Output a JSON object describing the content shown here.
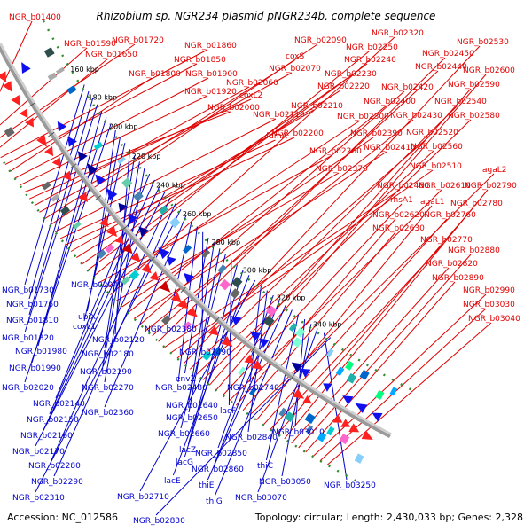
{
  "title": "Rhizobium sp. NGR234 plasmid pNGR234b, complete sequence",
  "footer": {
    "accession": "Accession: NC_012586",
    "topology": "Topology: circular; Length: 2,430,033 bp; Genes: 2,328"
  },
  "colors": {
    "top_labels": "#e00000",
    "bottom_labels": "#0000cc",
    "backbone": "#999999",
    "dots": "#2e8b2e"
  },
  "ticks": [
    "160 kbp",
    "180 kbp",
    "200 kbp",
    "220 kbp",
    "240 kbp",
    "260 kbp",
    "280 kbp",
    "300 kbp",
    "320 kbp",
    "340 kbp"
  ],
  "top_labels": [
    "NGR_b01400",
    "NGR_b01590",
    "NGR_b01720",
    "NGR_b01650",
    "NGR_b01860",
    "NGR_b01850",
    "NGR_b01800",
    "NGR_b01900",
    "NGR_b01920",
    "NGR_b02000",
    "coxL2",
    "NGR_b02060",
    "NGR_b02070",
    "coxS",
    "NGR_b02090",
    "NGR_b02110",
    "fumA",
    "NGR_b02200",
    "NGR_b02210",
    "NGR_b02220",
    "NGR_b02230",
    "NGR_b02240",
    "NGR_b02250",
    "NGR_b02260",
    "NGR_b02300",
    "NGR_b02320",
    "NGR_b02370",
    "NGR_b02390",
    "NGR_b02400",
    "NGR_b02410",
    "NGR_b02420",
    "NGR_b02430",
    "NGR_b02440",
    "NGR_b02450",
    "NGR_b02460",
    "NGR_b02510",
    "NGR_b02520",
    "NGR_b02530",
    "NGR_b02540",
    "NGR_b02560",
    "NGR_b02580",
    "NGR_b02590",
    "NGR_b02600",
    "rhsA1",
    "NGR_b02610",
    "NGR_b02620",
    "NGR_b02630",
    "agaL2",
    "agaL1",
    "NGR_b02760",
    "NGR_b02770",
    "NGR_b02780",
    "NGR_b02790",
    "NGR_b02820",
    "NGR_b02880",
    "NGR_b02890",
    "NGR_b02990",
    "NGR_b03030",
    "NGR_b03040"
  ],
  "bottom_labels": [
    "NGR_b01730",
    "NGR_b01760",
    "NGR_b01810",
    "NGR_b01820",
    "NGR_b01980",
    "NGR_b01990",
    "NGR_b02020",
    "NGR_b02040",
    "ubiX",
    "coxL1",
    "NGR_b02120",
    "NGR_b02180",
    "NGR_b02190",
    "NGR_b02270",
    "NGR_b02140",
    "NGR_b02150",
    "NGR_b02160",
    "NGR_b02170",
    "NGR_b02280",
    "NGR_b02290",
    "NGR_b02310",
    "NGR_b02360",
    "NGR_b02380",
    "NGR_b02480",
    "NGR_b02490",
    "envZ",
    "NGR_b02640",
    "NGR_b02650",
    "NGR_b02660",
    "lacF",
    "lacZ",
    "lacG",
    "lacE",
    "NGR_b02710",
    "NGR_b02740",
    "NGR_b02840",
    "NGR_b02850",
    "NGR_b02860",
    "thiE",
    "thiG",
    "thiC",
    "NGR_b03010",
    "NGR_b03050",
    "NGR_b03070",
    "NGR_b03250",
    "NGR_b02830"
  ]
}
